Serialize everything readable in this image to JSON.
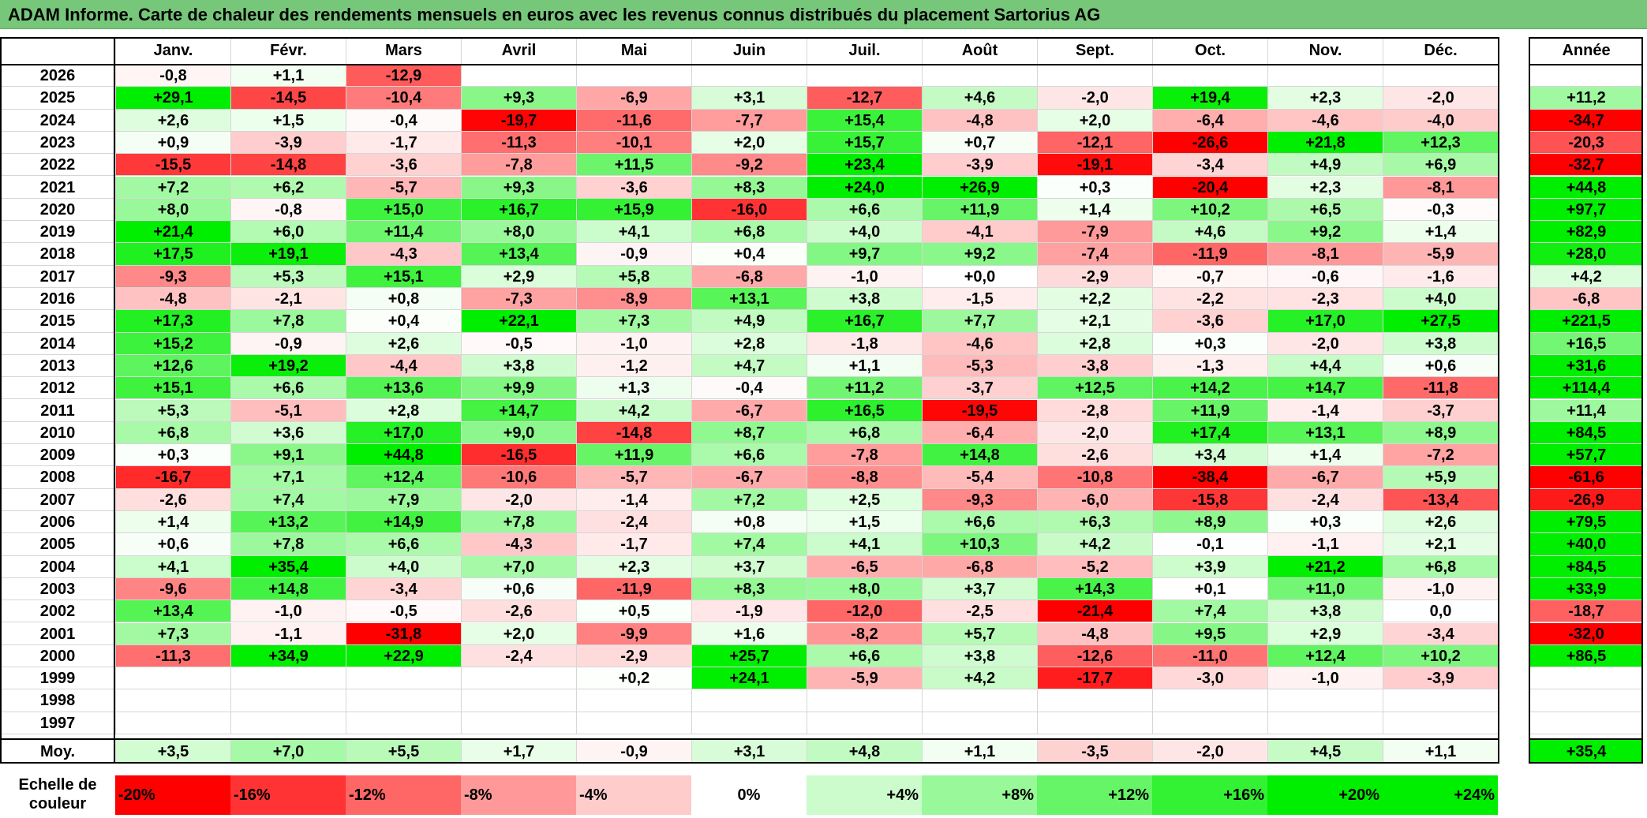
{
  "title": "ADAM Informe. Carte de chaleur des rendements mensuels en euros avec les revenus connus distribués du placement Sartorius AG",
  "chart_data": {
    "type": "heatmap",
    "title": "ADAM Informe. Carte de chaleur des rendements mensuels en euros avec les revenus connus distribués du placement Sartorius AG",
    "columns": [
      "Janv.",
      "Févr.",
      "Mars",
      "Avril",
      "Mai",
      "Juin",
      "Juil.",
      "Août",
      "Sept.",
      "Oct.",
      "Nov.",
      "Déc."
    ],
    "year_header": "Année",
    "rows": [
      {
        "year": "2026",
        "values": [
          "-0,8",
          "+1,1",
          "-12,9",
          "",
          "",
          "",
          "",
          "",
          "",
          "",
          "",
          ""
        ],
        "annual": ""
      },
      {
        "year": "2025",
        "values": [
          "+29,1",
          "-14,5",
          "-10,4",
          "+9,3",
          "-6,9",
          "+3,1",
          "-12,7",
          "+4,6",
          "-2,0",
          "+19,4",
          "+2,3",
          "-2,0"
        ],
        "annual": "+11,2"
      },
      {
        "year": "2024",
        "values": [
          "+2,6",
          "+1,5",
          "-0,4",
          "-19,7",
          "-11,6",
          "-7,7",
          "+15,4",
          "-4,8",
          "+2,0",
          "-6,4",
          "-4,6",
          "-4,0"
        ],
        "annual": "-34,7"
      },
      {
        "year": "2023",
        "values": [
          "+0,9",
          "-3,9",
          "-1,7",
          "-11,3",
          "-10,1",
          "+2,0",
          "+15,7",
          "+0,7",
          "-12,1",
          "-26,6",
          "+21,8",
          "+12,3"
        ],
        "annual": "-20,3"
      },
      {
        "year": "2022",
        "values": [
          "-15,5",
          "-14,8",
          "-3,6",
          "-7,8",
          "+11,5",
          "-9,2",
          "+23,4",
          "-3,9",
          "-19,1",
          "-3,4",
          "+4,9",
          "+6,9"
        ],
        "annual": "-32,7"
      },
      {
        "year": "2021",
        "values": [
          "+7,2",
          "+6,2",
          "-5,7",
          "+9,3",
          "-3,6",
          "+8,3",
          "+24,0",
          "+26,9",
          "+0,3",
          "-20,4",
          "+2,3",
          "-8,1"
        ],
        "annual": "+44,8"
      },
      {
        "year": "2020",
        "values": [
          "+8,0",
          "-0,8",
          "+15,0",
          "+16,7",
          "+15,9",
          "-16,0",
          "+6,6",
          "+11,9",
          "+1,4",
          "+10,2",
          "+6,5",
          "-0,3"
        ],
        "annual": "+97,7"
      },
      {
        "year": "2019",
        "values": [
          "+21,4",
          "+6,0",
          "+11,4",
          "+8,0",
          "+4,1",
          "+6,8",
          "+4,0",
          "-4,1",
          "-7,9",
          "+4,6",
          "+9,2",
          "+1,4"
        ],
        "annual": "+82,9"
      },
      {
        "year": "2018",
        "values": [
          "+17,5",
          "+19,1",
          "-4,3",
          "+13,4",
          "-0,9",
          "+0,4",
          "+9,7",
          "+9,2",
          "-7,4",
          "-11,9",
          "-8,1",
          "-5,9"
        ],
        "annual": "+28,0"
      },
      {
        "year": "2017",
        "values": [
          "-9,3",
          "+5,3",
          "+15,1",
          "+2,9",
          "+5,8",
          "-6,8",
          "-1,0",
          "+0,0",
          "-2,9",
          "-0,7",
          "-0,6",
          "-1,6"
        ],
        "annual": "+4,2"
      },
      {
        "year": "2016",
        "values": [
          "-4,8",
          "-2,1",
          "+0,8",
          "-7,3",
          "-8,9",
          "+13,1",
          "+3,8",
          "-1,5",
          "+2,2",
          "-2,2",
          "-2,3",
          "+4,0"
        ],
        "annual": "-6,8"
      },
      {
        "year": "2015",
        "values": [
          "+17,3",
          "+7,8",
          "+0,4",
          "+22,1",
          "+7,3",
          "+4,9",
          "+16,7",
          "+7,7",
          "+2,1",
          "-3,6",
          "+17,0",
          "+27,5"
        ],
        "annual": "+221,5"
      },
      {
        "year": "2014",
        "values": [
          "+15,2",
          "-0,9",
          "+2,6",
          "-0,5",
          "-1,0",
          "+2,8",
          "-1,8",
          "-4,6",
          "+2,8",
          "+0,3",
          "-2,0",
          "+3,8"
        ],
        "annual": "+16,5"
      },
      {
        "year": "2013",
        "values": [
          "+12,6",
          "+19,2",
          "-4,4",
          "+3,8",
          "-1,2",
          "+4,7",
          "+1,1",
          "-5,3",
          "-3,8",
          "-1,3",
          "+4,4",
          "+0,6"
        ],
        "annual": "+31,6"
      },
      {
        "year": "2012",
        "values": [
          "+15,1",
          "+6,6",
          "+13,6",
          "+9,9",
          "+1,3",
          "-0,4",
          "+11,2",
          "-3,7",
          "+12,5",
          "+14,2",
          "+14,7",
          "-11,8"
        ],
        "annual": "+114,4"
      },
      {
        "year": "2011",
        "values": [
          "+5,3",
          "-5,1",
          "+2,8",
          "+14,7",
          "+4,2",
          "-6,7",
          "+16,5",
          "-19,5",
          "-2,8",
          "+11,9",
          "-1,4",
          "-3,7"
        ],
        "annual": "+11,4"
      },
      {
        "year": "2010",
        "values": [
          "+6,8",
          "+3,6",
          "+17,0",
          "+9,0",
          "-14,8",
          "+8,7",
          "+6,8",
          "-6,4",
          "-2,0",
          "+17,4",
          "+13,1",
          "+8,9"
        ],
        "annual": "+84,5"
      },
      {
        "year": "2009",
        "values": [
          "+0,3",
          "+9,1",
          "+44,8",
          "-16,5",
          "+11,9",
          "+6,6",
          "-7,8",
          "+14,8",
          "-2,6",
          "+3,4",
          "+1,4",
          "-7,2"
        ],
        "annual": "+57,7"
      },
      {
        "year": "2008",
        "values": [
          "-16,7",
          "+7,1",
          "+12,4",
          "-10,6",
          "-5,7",
          "-6,7",
          "-8,8",
          "-5,4",
          "-10,8",
          "-38,4",
          "-6,7",
          "+5,9"
        ],
        "annual": "-61,6"
      },
      {
        "year": "2007",
        "values": [
          "-2,6",
          "+7,4",
          "+7,9",
          "-2,0",
          "-1,4",
          "+7,2",
          "+2,5",
          "-9,3",
          "-6,0",
          "-15,8",
          "-2,4",
          "-13,4"
        ],
        "annual": "-26,9"
      },
      {
        "year": "2006",
        "values": [
          "+1,4",
          "+13,2",
          "+14,9",
          "+7,8",
          "-2,4",
          "+0,8",
          "+1,5",
          "+6,6",
          "+6,3",
          "+8,9",
          "+0,3",
          "+2,6"
        ],
        "annual": "+79,5"
      },
      {
        "year": "2005",
        "values": [
          "+0,6",
          "+7,8",
          "+6,6",
          "-4,3",
          "-1,7",
          "+7,4",
          "+4,1",
          "+10,3",
          "+4,2",
          "-0,1",
          "-1,1",
          "+2,1"
        ],
        "annual": "+40,0"
      },
      {
        "year": "2004",
        "values": [
          "+4,1",
          "+35,4",
          "+4,0",
          "+7,0",
          "+2,3",
          "+3,7",
          "-6,5",
          "-6,8",
          "-5,2",
          "+3,9",
          "+21,2",
          "+6,8"
        ],
        "annual": "+84,5"
      },
      {
        "year": "2003",
        "values": [
          "-9,6",
          "+14,8",
          "-3,4",
          "+0,6",
          "-11,9",
          "+8,3",
          "+8,0",
          "+3,7",
          "+14,3",
          "+0,1",
          "+11,0",
          "-1,0"
        ],
        "annual": "+33,9"
      },
      {
        "year": "2002",
        "values": [
          "+13,4",
          "-1,0",
          "-0,5",
          "-2,6",
          "+0,5",
          "-1,9",
          "-12,0",
          "-2,5",
          "-21,4",
          "+7,4",
          "+3,8",
          "0,0"
        ],
        "annual": "-18,7"
      },
      {
        "year": "2001",
        "values": [
          "+7,3",
          "-1,1",
          "-31,8",
          "+2,0",
          "-9,9",
          "+1,6",
          "-8,2",
          "+5,7",
          "-4,8",
          "+9,5",
          "+2,9",
          "-3,4"
        ],
        "annual": "-32,0"
      },
      {
        "year": "2000",
        "values": [
          "-11,3",
          "+34,9",
          "+22,9",
          "-2,4",
          "-2,9",
          "+25,7",
          "+6,6",
          "+3,8",
          "-12,6",
          "-11,0",
          "+12,4",
          "+10,2"
        ],
        "annual": "+86,5"
      },
      {
        "year": "1999",
        "values": [
          "",
          "",
          "",
          "",
          "+0,2",
          "+24,1",
          "-5,9",
          "+4,2",
          "-17,7",
          "-3,0",
          "-1,0",
          "-3,9"
        ],
        "annual": ""
      },
      {
        "year": "1998",
        "values": [
          "",
          "",
          "",
          "",
          "",
          "",
          "",
          "",
          "",
          "",
          "",
          ""
        ],
        "annual": ""
      },
      {
        "year": "1997",
        "values": [
          "",
          "",
          "",
          "",
          "",
          "",
          "",
          "",
          "",
          "",
          "",
          ""
        ],
        "annual": ""
      }
    ],
    "average": {
      "label": "Moy.",
      "values": [
        "+3,5",
        "+7,0",
        "+5,5",
        "+1,7",
        "-0,9",
        "+3,1",
        "+4,8",
        "+1,1",
        "-3,5",
        "-2,0",
        "+4,5",
        "+1,1"
      ],
      "annual": "+35,4"
    },
    "color_scale": {
      "label": "Echelle de couleur",
      "stops": [
        "-20%",
        "-16%",
        "-12%",
        "-8%",
        "-4%",
        "0%",
        "+4%",
        "+8%",
        "+12%",
        "+16%",
        "+20%",
        "+24%"
      ],
      "negative_color": "#ff0000",
      "neutral_color": "#ffffff",
      "positive_color": "#00ee00"
    }
  }
}
